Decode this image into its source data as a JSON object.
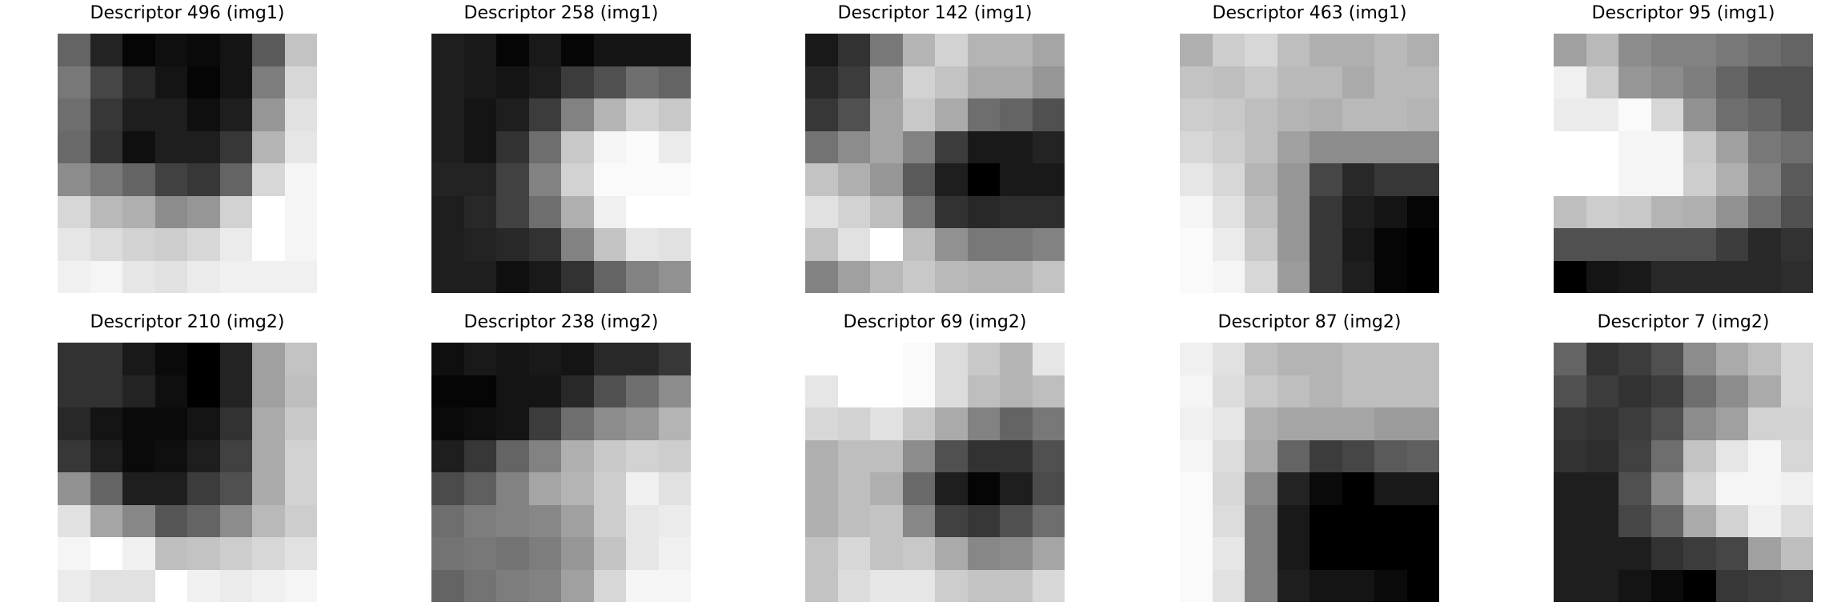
{
  "panels": [
    {
      "title": "Descriptor 496 (img1)",
      "grid": [
        [
          100,
          35,
          5,
          15,
          10,
          20,
          90,
          195
        ],
        [
          120,
          70,
          40,
          20,
          5,
          20,
          125,
          215
        ],
        [
          110,
          55,
          30,
          30,
          15,
          30,
          150,
          225
        ],
        [
          105,
          50,
          15,
          30,
          30,
          55,
          180,
          230
        ],
        [
          140,
          120,
          100,
          65,
          55,
          100,
          215,
          245
        ],
        [
          215,
          185,
          175,
          140,
          150,
          210,
          255,
          245
        ],
        [
          230,
          220,
          210,
          205,
          215,
          235,
          255,
          245
        ],
        [
          240,
          245,
          230,
          225,
          235,
          240,
          240,
          240
        ]
      ]
    },
    {
      "title": "Descriptor 258 (img1)",
      "grid": [
        [
          30,
          25,
          5,
          25,
          5,
          20,
          20,
          20
        ],
        [
          30,
          25,
          20,
          30,
          60,
          80,
          110,
          100
        ],
        [
          30,
          20,
          30,
          60,
          130,
          180,
          210,
          200
        ],
        [
          30,
          20,
          50,
          110,
          200,
          245,
          250,
          235
        ],
        [
          35,
          35,
          65,
          130,
          210,
          250,
          250,
          250
        ],
        [
          30,
          40,
          65,
          110,
          175,
          240,
          255,
          255
        ],
        [
          30,
          35,
          40,
          50,
          130,
          195,
          230,
          225
        ],
        [
          30,
          30,
          15,
          25,
          50,
          100,
          130,
          145
        ]
      ]
    },
    {
      "title": "Descriptor 142 (img1)",
      "grid": [
        [
          25,
          50,
          120,
          180,
          210,
          180,
          180,
          165
        ],
        [
          40,
          60,
          160,
          210,
          195,
          170,
          170,
          150
        ],
        [
          55,
          80,
          165,
          200,
          170,
          110,
          100,
          80
        ],
        [
          115,
          140,
          165,
          130,
          60,
          25,
          25,
          35
        ],
        [
          195,
          175,
          150,
          90,
          30,
          0,
          25,
          25
        ],
        [
          225,
          210,
          190,
          120,
          50,
          40,
          45,
          45
        ],
        [
          195,
          225,
          255,
          190,
          145,
          120,
          120,
          130
        ],
        [
          130,
          160,
          185,
          200,
          185,
          180,
          180,
          195
        ]
      ]
    },
    {
      "title": "Descriptor 463 (img1)",
      "grid": [
        [
          175,
          205,
          215,
          190,
          175,
          175,
          185,
          175
        ],
        [
          195,
          190,
          200,
          185,
          185,
          170,
          185,
          185
        ],
        [
          205,
          200,
          190,
          180,
          175,
          185,
          185,
          180
        ],
        [
          215,
          205,
          190,
          160,
          140,
          140,
          140,
          140
        ],
        [
          230,
          215,
          180,
          150,
          70,
          40,
          55,
          55
        ],
        [
          245,
          225,
          190,
          150,
          55,
          30,
          20,
          5
        ],
        [
          250,
          235,
          200,
          150,
          55,
          25,
          5,
          0
        ],
        [
          250,
          245,
          215,
          155,
          55,
          30,
          5,
          0
        ]
      ]
    },
    {
      "title": "Descriptor 95 (img1)",
      "grid": [
        [
          160,
          185,
          140,
          130,
          130,
          120,
          110,
          100
        ],
        [
          240,
          205,
          150,
          140,
          125,
          100,
          80,
          80
        ],
        [
          235,
          235,
          250,
          215,
          145,
          110,
          100,
          80
        ],
        [
          255,
          255,
          245,
          245,
          200,
          160,
          120,
          110
        ],
        [
          255,
          255,
          245,
          245,
          205,
          175,
          130,
          90
        ],
        [
          190,
          205,
          200,
          180,
          175,
          145,
          110,
          80
        ],
        [
          80,
          80,
          80,
          80,
          80,
          60,
          40,
          50
        ],
        [
          0,
          20,
          25,
          40,
          40,
          40,
          40,
          45
        ]
      ]
    },
    {
      "title": "Descriptor 210 (img2)",
      "grid": [
        [
          50,
          50,
          25,
          10,
          0,
          35,
          160,
          195
        ],
        [
          50,
          50,
          35,
          15,
          0,
          35,
          160,
          190
        ],
        [
          40,
          20,
          10,
          10,
          20,
          50,
          170,
          200
        ],
        [
          55,
          30,
          10,
          15,
          30,
          65,
          170,
          210
        ],
        [
          145,
          100,
          30,
          30,
          60,
          80,
          170,
          210
        ],
        [
          225,
          165,
          135,
          85,
          100,
          140,
          185,
          205
        ],
        [
          245,
          255,
          240,
          190,
          195,
          205,
          215,
          225
        ],
        [
          235,
          225,
          225,
          255,
          240,
          235,
          240,
          245
        ]
      ]
    },
    {
      "title": "Descriptor 238 (img2)",
      "grid": [
        [
          15,
          25,
          20,
          25,
          20,
          40,
          40,
          55
        ],
        [
          5,
          5,
          20,
          20,
          40,
          80,
          110,
          140
        ],
        [
          10,
          15,
          20,
          60,
          110,
          140,
          150,
          180
        ],
        [
          30,
          55,
          100,
          130,
          175,
          200,
          210,
          205
        ],
        [
          75,
          95,
          130,
          165,
          180,
          205,
          240,
          225
        ],
        [
          110,
          125,
          130,
          135,
          160,
          205,
          230,
          235
        ],
        [
          115,
          120,
          115,
          125,
          150,
          195,
          230,
          240
        ],
        [
          100,
          115,
          125,
          130,
          160,
          215,
          245,
          245
        ]
      ]
    },
    {
      "title": "Descriptor 69 (img2)",
      "grid": [
        [
          255,
          255,
          255,
          250,
          220,
          200,
          180,
          230
        ],
        [
          230,
          255,
          255,
          250,
          220,
          190,
          180,
          190
        ],
        [
          215,
          210,
          225,
          200,
          170,
          130,
          100,
          120
        ],
        [
          175,
          190,
          190,
          140,
          80,
          50,
          50,
          80
        ],
        [
          175,
          190,
          175,
          105,
          30,
          5,
          30,
          75
        ],
        [
          175,
          190,
          195,
          135,
          65,
          55,
          80,
          110
        ],
        [
          195,
          215,
          195,
          200,
          170,
          135,
          140,
          165
        ],
        [
          195,
          220,
          230,
          230,
          205,
          195,
          195,
          215
        ]
      ]
    },
    {
      "title": "Descriptor 87 (img2)",
      "grid": [
        [
          240,
          225,
          190,
          180,
          180,
          190,
          190,
          190
        ],
        [
          245,
          220,
          200,
          190,
          180,
          190,
          190,
          190
        ],
        [
          240,
          230,
          175,
          165,
          165,
          165,
          155,
          155
        ],
        [
          245,
          220,
          170,
          100,
          60,
          70,
          90,
          95
        ],
        [
          250,
          215,
          140,
          35,
          10,
          0,
          25,
          25
        ],
        [
          250,
          220,
          130,
          25,
          0,
          0,
          0,
          0
        ],
        [
          250,
          230,
          130,
          25,
          0,
          0,
          0,
          0
        ],
        [
          250,
          225,
          130,
          30,
          20,
          20,
          10,
          0
        ]
      ]
    },
    {
      "title": "Descriptor 7 (img2)",
      "grid": [
        [
          100,
          50,
          60,
          80,
          140,
          170,
          190,
          215
        ],
        [
          80,
          60,
          50,
          60,
          110,
          140,
          170,
          215
        ],
        [
          55,
          50,
          60,
          80,
          140,
          160,
          210,
          210
        ],
        [
          50,
          45,
          65,
          110,
          195,
          230,
          245,
          215
        ],
        [
          30,
          30,
          80,
          140,
          210,
          245,
          245,
          240
        ],
        [
          30,
          30,
          70,
          100,
          170,
          210,
          240,
          220
        ],
        [
          30,
          30,
          30,
          50,
          60,
          70,
          160,
          190
        ],
        [
          30,
          30,
          20,
          10,
          0,
          55,
          60,
          65
        ]
      ]
    }
  ]
}
